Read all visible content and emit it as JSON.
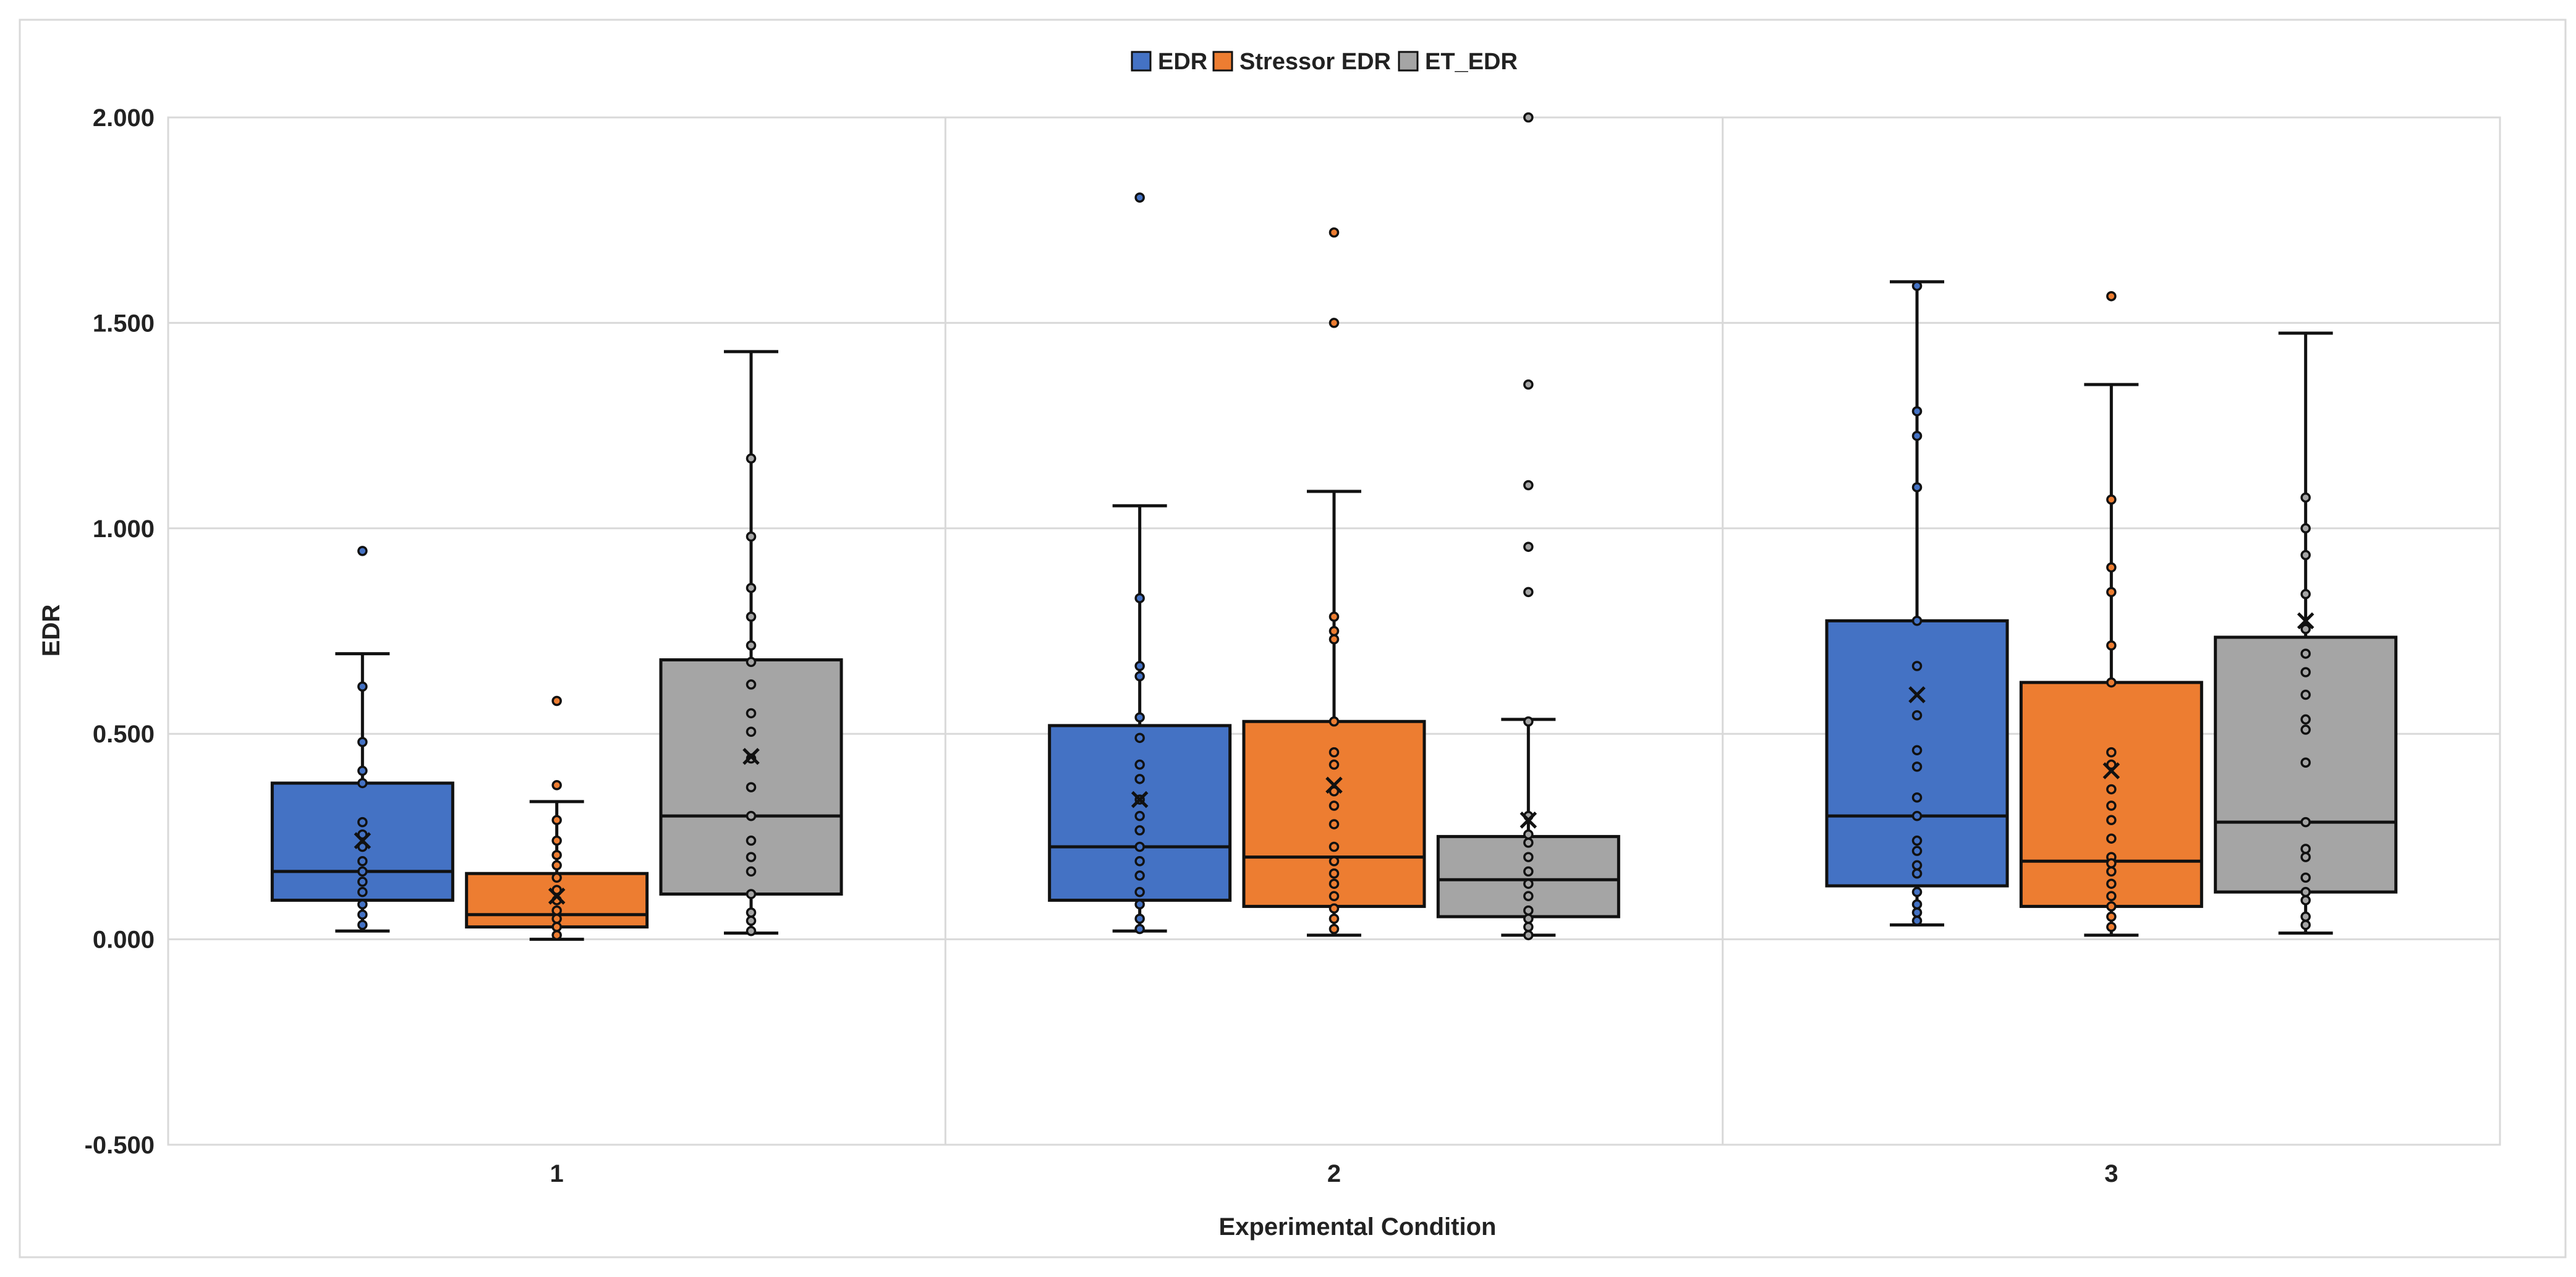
{
  "chart_data": {
    "type": "box",
    "title": "",
    "xlabel": "Experimental Condition",
    "ylabel": "EDR",
    "ylim": [
      -0.5,
      2.0
    ],
    "yticks": [
      "-0.500",
      "0.000",
      "0.500",
      "1.000",
      "1.500",
      "2.000"
    ],
    "yticks_values": [
      -0.5,
      0,
      0.5,
      1,
      1.5,
      2
    ],
    "categories": [
      "1",
      "2",
      "3"
    ],
    "legend_position": "top",
    "series": [
      {
        "name": "EDR",
        "color": "#4472C4",
        "boxes": [
          {
            "min": 0.02,
            "q1": 0.095,
            "median": 0.165,
            "q3": 0.38,
            "max": 0.695,
            "mean": 0.24,
            "points": [
              0.945,
              0.615,
              0.48,
              0.41,
              0.38,
              0.285,
              0.255,
              0.225,
              0.19,
              0.165,
              0.14,
              0.115,
              0.085,
              0.06,
              0.035
            ]
          },
          {
            "min": 0.02,
            "q1": 0.095,
            "median": 0.225,
            "q3": 0.52,
            "max": 1.055,
            "mean": 0.34,
            "points": [
              1.805,
              0.83,
              0.665,
              0.64,
              0.54,
              0.49,
              0.425,
              0.39,
              0.34,
              0.3,
              0.265,
              0.225,
              0.19,
              0.155,
              0.115,
              0.085,
              0.05,
              0.025
            ]
          },
          {
            "min": 0.035,
            "q1": 0.13,
            "median": 0.3,
            "q3": 0.775,
            "max": 1.6,
            "mean": 0.595,
            "points": [
              1.59,
              1.285,
              1.225,
              1.1,
              0.775,
              0.665,
              0.545,
              0.46,
              0.42,
              0.345,
              0.3,
              0.24,
              0.215,
              0.18,
              0.16,
              0.115,
              0.085,
              0.065,
              0.045
            ]
          }
        ]
      },
      {
        "name": "Stressor EDR",
        "color": "#ED7D31",
        "boxes": [
          {
            "min": 0.0,
            "q1": 0.03,
            "median": 0.06,
            "q3": 0.16,
            "max": 0.335,
            "mean": 0.105,
            "points": [
              0.58,
              0.375,
              0.29,
              0.24,
              0.205,
              0.18,
              0.15,
              0.12,
              0.095,
              0.07,
              0.05,
              0.03,
              0.01
            ]
          },
          {
            "min": 0.01,
            "q1": 0.08,
            "median": 0.2,
            "q3": 0.53,
            "max": 1.09,
            "mean": 0.375,
            "points": [
              1.72,
              1.5,
              0.785,
              0.75,
              0.73,
              0.53,
              0.455,
              0.425,
              0.36,
              0.325,
              0.28,
              0.225,
              0.19,
              0.16,
              0.135,
              0.105,
              0.075,
              0.05,
              0.025
            ]
          },
          {
            "min": 0.01,
            "q1": 0.08,
            "median": 0.19,
            "q3": 0.625,
            "max": 1.35,
            "mean": 0.41,
            "points": [
              1.565,
              1.07,
              0.905,
              0.845,
              0.715,
              0.625,
              0.455,
              0.425,
              0.365,
              0.325,
              0.29,
              0.245,
              0.2,
              0.185,
              0.165,
              0.135,
              0.105,
              0.08,
              0.055,
              0.03
            ]
          }
        ]
      },
      {
        "name": "ET_EDR",
        "color": "#A5A5A5",
        "boxes": [
          {
            "min": 0.015,
            "q1": 0.11,
            "median": 0.3,
            "q3": 0.68,
            "max": 1.43,
            "mean": 0.445,
            "points": [
              1.17,
              0.98,
              0.855,
              0.785,
              0.715,
              0.675,
              0.62,
              0.55,
              0.505,
              0.44,
              0.37,
              0.3,
              0.24,
              0.2,
              0.165,
              0.11,
              0.065,
              0.045,
              0.02
            ]
          },
          {
            "min": 0.01,
            "q1": 0.055,
            "median": 0.145,
            "q3": 0.25,
            "max": 0.535,
            "mean": 0.29,
            "points": [
              2.0,
              1.35,
              1.105,
              0.955,
              0.845,
              0.53,
              0.3,
              0.255,
              0.235,
              0.2,
              0.165,
              0.135,
              0.105,
              0.07,
              0.05,
              0.03,
              0.01
            ]
          },
          {
            "min": 0.015,
            "q1": 0.115,
            "median": 0.285,
            "q3": 0.735,
            "max": 1.475,
            "mean": 0.775,
            "points": [
              1.075,
              1.0,
              0.935,
              0.84,
              0.755,
              0.695,
              0.65,
              0.595,
              0.535,
              0.51,
              0.43,
              0.285,
              0.22,
              0.2,
              0.15,
              0.115,
              0.095,
              0.055,
              0.035
            ]
          }
        ]
      }
    ]
  }
}
